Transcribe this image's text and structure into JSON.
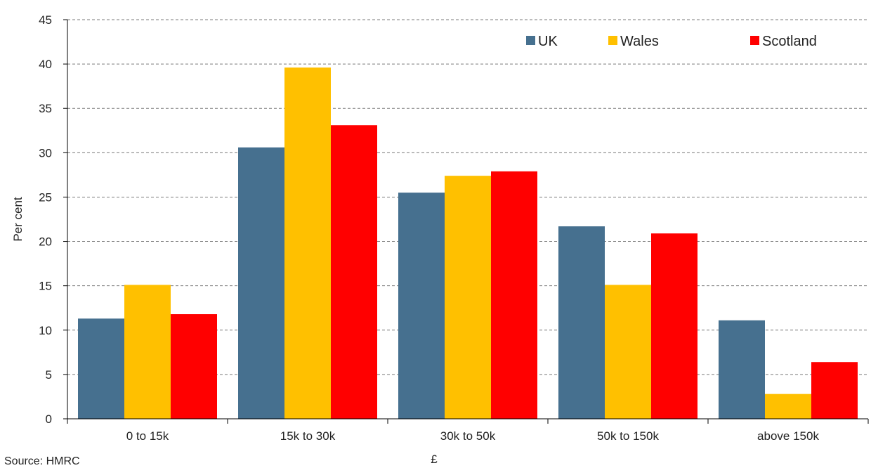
{
  "chart_data": {
    "type": "bar",
    "title": "",
    "xlabel": "£",
    "ylabel": "Per cent",
    "ylim": [
      0,
      45
    ],
    "yticks": [
      0,
      5,
      10,
      15,
      20,
      25,
      30,
      35,
      40,
      45
    ],
    "grid": true,
    "legend_position": "top-right",
    "categories": [
      "0 to 15k",
      "15k to 30k",
      "30k to 50k",
      "50k to 150k",
      "above 150k"
    ],
    "series": [
      {
        "name": "UK",
        "color": "#46708f",
        "values": [
          11.3,
          30.6,
          25.5,
          21.7,
          11.1
        ]
      },
      {
        "name": "Wales",
        "color": "#ffc000",
        "values": [
          15.1,
          39.6,
          27.4,
          15.1,
          2.8
        ]
      },
      {
        "name": "Scotland",
        "color": "#ff0000",
        "values": [
          11.8,
          33.1,
          27.9,
          20.9,
          6.4
        ]
      }
    ]
  },
  "source": "Source: HMRC"
}
